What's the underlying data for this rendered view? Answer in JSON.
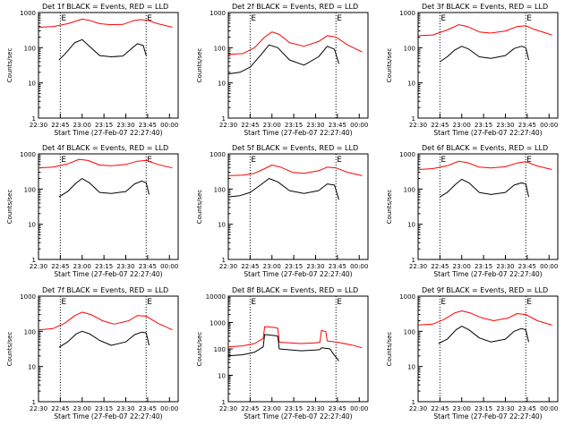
{
  "figure": {
    "ylabel": "Counts/sec",
    "xlabel": "Start Time (27-Feb-07 22:27:40)",
    "xticks": [
      "22:30",
      "22:45",
      "23:00",
      "23:15",
      "23:30",
      "23:45",
      "00:00"
    ],
    "colors": {
      "events": "#000000",
      "lld": "#ff0000",
      "axes": "#000000",
      "background": "#ffffff"
    }
  },
  "chart_data": [
    {
      "type": "line",
      "title": "Det 1f BLACK = Events, RED = LLD",
      "ylim": [
        1,
        1000
      ],
      "yscale": "log",
      "yticks": [
        "1",
        "10",
        "100",
        "1000"
      ],
      "markers": [
        {
          "x": "22:45",
          "label": "E"
        },
        {
          "x": "23:44",
          "label": "E"
        }
      ],
      "series": [
        {
          "name": "Events",
          "color": "#000000",
          "x": [
            "22:44",
            "22:48",
            "22:55",
            "23:00",
            "23:05",
            "23:12",
            "23:20",
            "23:28",
            "23:34",
            "23:38",
            "23:42",
            "23:44"
          ],
          "values": [
            45,
            65,
            140,
            170,
            110,
            60,
            55,
            58,
            95,
            130,
            115,
            60
          ]
        },
        {
          "name": "LLD",
          "color": "#ff0000",
          "x": [
            "22:30",
            "22:40",
            "22:50",
            "23:00",
            "23:05",
            "23:12",
            "23:20",
            "23:28",
            "23:35",
            "23:40",
            "23:45",
            "23:52",
            "00:02"
          ],
          "values": [
            380,
            400,
            480,
            650,
            600,
            480,
            450,
            460,
            580,
            630,
            600,
            480,
            380
          ]
        }
      ]
    },
    {
      "type": "line",
      "title": "Det 2f BLACK = Events, RED = LLD",
      "ylim": [
        1,
        1000
      ],
      "yscale": "log",
      "yticks": [
        "1",
        "10",
        "100",
        "1000"
      ],
      "markers": [
        {
          "x": "22:45",
          "label": "E"
        },
        {
          "x": "23:44",
          "label": "E"
        }
      ],
      "series": [
        {
          "name": "Events",
          "color": "#000000",
          "x": [
            "22:30",
            "22:38",
            "22:45",
            "22:52",
            "22:58",
            "23:04",
            "23:12",
            "23:22",
            "23:32",
            "23:38",
            "23:43",
            "23:46"
          ],
          "values": [
            18,
            20,
            28,
            60,
            120,
            100,
            45,
            32,
            55,
            110,
            90,
            35
          ]
        },
        {
          "name": "LLD",
          "color": "#ff0000",
          "x": [
            "22:30",
            "22:40",
            "22:48",
            "22:55",
            "23:00",
            "23:05",
            "23:12",
            "23:22",
            "23:32",
            "23:38",
            "23:44",
            "23:52",
            "00:02"
          ],
          "values": [
            65,
            68,
            100,
            200,
            280,
            240,
            140,
            110,
            150,
            220,
            200,
            120,
            75
          ]
        }
      ]
    },
    {
      "type": "line",
      "title": "Det 3f BLACK = Events, RED = LLD",
      "ylim": [
        1,
        1000
      ],
      "yscale": "log",
      "yticks": [
        "1",
        "10",
        "100",
        "1000"
      ],
      "markers": [
        {
          "x": "22:45",
          "label": "E"
        },
        {
          "x": "23:44",
          "label": "E"
        }
      ],
      "series": [
        {
          "name": "Events",
          "color": "#000000",
          "x": [
            "22:45",
            "22:50",
            "22:55",
            "23:00",
            "23:05",
            "23:12",
            "23:20",
            "23:30",
            "23:36",
            "23:41",
            "23:44",
            "23:46"
          ],
          "values": [
            40,
            55,
            85,
            110,
            90,
            55,
            50,
            60,
            95,
            110,
            100,
            45
          ]
        },
        {
          "name": "LLD",
          "color": "#ff0000",
          "x": [
            "22:30",
            "22:40",
            "22:50",
            "22:58",
            "23:04",
            "23:12",
            "23:20",
            "23:30",
            "23:38",
            "23:44",
            "23:50",
            "00:02"
          ],
          "values": [
            220,
            230,
            320,
            450,
            400,
            280,
            260,
            300,
            400,
            420,
            330,
            230
          ]
        }
      ]
    },
    {
      "type": "line",
      "title": "Det 4f BLACK = Events, RED = LLD",
      "ylim": [
        1,
        1000
      ],
      "yscale": "log",
      "yticks": [
        "1",
        "10",
        "100",
        "1000"
      ],
      "markers": [
        {
          "x": "22:45",
          "label": "E"
        },
        {
          "x": "23:44",
          "label": "E"
        }
      ],
      "series": [
        {
          "name": "Events",
          "color": "#000000",
          "x": [
            "22:44",
            "22:50",
            "22:56",
            "23:00",
            "23:05",
            "23:12",
            "23:20",
            "23:30",
            "23:36",
            "23:41",
            "23:44",
            "23:46"
          ],
          "values": [
            60,
            85,
            150,
            200,
            150,
            80,
            75,
            85,
            140,
            170,
            150,
            70
          ]
        },
        {
          "name": "LLD",
          "color": "#ff0000",
          "x": [
            "22:30",
            "22:40",
            "22:50",
            "22:58",
            "23:04",
            "23:12",
            "23:20",
            "23:30",
            "23:38",
            "23:44",
            "23:52",
            "00:02"
          ],
          "values": [
            400,
            420,
            520,
            700,
            650,
            480,
            460,
            500,
            620,
            650,
            500,
            400
          ]
        }
      ]
    },
    {
      "type": "line",
      "title": "Det 5f BLACK = Events, RED = LLD",
      "ylim": [
        1,
        1000
      ],
      "yscale": "log",
      "yticks": [
        "1",
        "10",
        "100",
        "1000"
      ],
      "markers": [
        {
          "x": "22:45",
          "label": "E"
        },
        {
          "x": "23:44",
          "label": "E"
        }
      ],
      "series": [
        {
          "name": "Events",
          "color": "#000000",
          "x": [
            "22:30",
            "22:38",
            "22:45",
            "22:52",
            "22:58",
            "23:04",
            "23:12",
            "23:22",
            "23:32",
            "23:38",
            "23:43",
            "23:46"
          ],
          "values": [
            60,
            65,
            80,
            130,
            200,
            160,
            90,
            75,
            90,
            140,
            130,
            50
          ]
        },
        {
          "name": "LLD",
          "color": "#ff0000",
          "x": [
            "22:30",
            "22:40",
            "22:48",
            "22:55",
            "23:00",
            "23:06",
            "23:14",
            "23:22",
            "23:32",
            "23:38",
            "23:44",
            "23:52",
            "00:02"
          ],
          "values": [
            240,
            250,
            280,
            380,
            480,
            420,
            300,
            280,
            330,
            420,
            400,
            300,
            240
          ]
        }
      ]
    },
    {
      "type": "line",
      "title": "Det 6f BLACK = Events, RED = LLD",
      "ylim": [
        1,
        1000
      ],
      "yscale": "log",
      "yticks": [
        "1",
        "10",
        "100",
        "1000"
      ],
      "markers": [
        {
          "x": "22:45",
          "label": "E"
        },
        {
          "x": "23:44",
          "label": "E"
        }
      ],
      "series": [
        {
          "name": "Events",
          "color": "#000000",
          "x": [
            "22:45",
            "22:50",
            "22:56",
            "23:00",
            "23:05",
            "23:12",
            "23:20",
            "23:30",
            "23:36",
            "23:41",
            "23:44",
            "23:46"
          ],
          "values": [
            60,
            80,
            140,
            190,
            150,
            80,
            70,
            80,
            130,
            150,
            140,
            60
          ]
        },
        {
          "name": "LLD",
          "color": "#ff0000",
          "x": [
            "22:30",
            "22:40",
            "22:50",
            "22:58",
            "23:04",
            "23:12",
            "23:20",
            "23:30",
            "23:38",
            "23:44",
            "23:52",
            "00:02"
          ],
          "values": [
            360,
            380,
            460,
            620,
            560,
            420,
            400,
            430,
            550,
            600,
            450,
            360
          ]
        }
      ]
    },
    {
      "type": "line",
      "title": "Det 7f BLACK = Events, RED = LLD",
      "ylim": [
        1,
        1000
      ],
      "yscale": "log",
      "yticks": [
        "1",
        "10",
        "100",
        "1000"
      ],
      "markers": [
        {
          "x": "22:45",
          "label": "E"
        },
        {
          "x": "23:44",
          "label": "E"
        }
      ],
      "series": [
        {
          "name": "Events",
          "color": "#000000",
          "x": [
            "22:44",
            "22:50",
            "22:56",
            "23:00",
            "23:05",
            "23:12",
            "23:20",
            "23:30",
            "23:36",
            "23:41",
            "23:44",
            "23:46"
          ],
          "values": [
            35,
            50,
            85,
            100,
            85,
            55,
            40,
            50,
            80,
            95,
            90,
            40
          ]
        },
        {
          "name": "LLD",
          "color": "#ff0000",
          "x": [
            "22:30",
            "22:40",
            "22:48",
            "22:55",
            "23:00",
            "23:06",
            "23:14",
            "23:22",
            "23:32",
            "23:38",
            "23:44",
            "23:52",
            "00:02"
          ],
          "values": [
            110,
            120,
            170,
            280,
            350,
            300,
            200,
            160,
            200,
            280,
            270,
            170,
            110
          ]
        }
      ]
    },
    {
      "type": "line",
      "title": "Det 8f BLACK = Events, RED = LLD",
      "ylim": [
        1,
        10000
      ],
      "yscale": "log",
      "yticks": [
        "1",
        "10",
        "100",
        "1000",
        "10000"
      ],
      "markers": [
        {
          "x": "22:45",
          "label": "E"
        },
        {
          "x": "23:44",
          "label": "E"
        }
      ],
      "series": [
        {
          "name": "Events",
          "color": "#000000",
          "x": [
            "22:30",
            "22:40",
            "22:48",
            "22:54",
            "22:55",
            "23:02",
            "23:04",
            "23:05",
            "23:20",
            "23:30",
            "23:33",
            "23:34",
            "23:40",
            "23:41",
            "23:46"
          ],
          "values": [
            55,
            60,
            75,
            120,
            350,
            320,
            300,
            100,
            85,
            90,
            95,
            110,
            100,
            80,
            35
          ]
        },
        {
          "name": "LLD",
          "color": "#ff0000",
          "x": [
            "22:30",
            "22:40",
            "22:48",
            "22:54",
            "22:55",
            "23:02",
            "23:04",
            "23:05",
            "23:20",
            "23:30",
            "23:33",
            "23:34",
            "23:37",
            "23:38",
            "23:45",
            "23:55",
            "00:02"
          ],
          "values": [
            120,
            130,
            160,
            250,
            700,
            650,
            600,
            180,
            160,
            170,
            180,
            500,
            450,
            200,
            180,
            140,
            110
          ]
        }
      ]
    },
    {
      "type": "line",
      "title": "Det 9f BLACK = Events, RED = LLD",
      "ylim": [
        1,
        1000
      ],
      "yscale": "log",
      "yticks": [
        "1",
        "10",
        "100",
        "1000"
      ],
      "markers": [
        {
          "x": "22:45",
          "label": "E"
        },
        {
          "x": "23:44",
          "label": "E"
        }
      ],
      "series": [
        {
          "name": "Events",
          "color": "#000000",
          "x": [
            "22:44",
            "22:50",
            "22:56",
            "23:00",
            "23:05",
            "23:12",
            "23:20",
            "23:30",
            "23:36",
            "23:41",
            "23:44",
            "23:46"
          ],
          "values": [
            45,
            60,
            110,
            140,
            110,
            65,
            50,
            60,
            100,
            120,
            110,
            50
          ]
        },
        {
          "name": "LLD",
          "color": "#ff0000",
          "x": [
            "22:30",
            "22:40",
            "22:48",
            "22:55",
            "23:00",
            "23:06",
            "23:14",
            "23:22",
            "23:32",
            "23:38",
            "23:44",
            "23:52",
            "00:02"
          ],
          "values": [
            150,
            160,
            220,
            330,
            380,
            330,
            240,
            200,
            240,
            320,
            300,
            200,
            150
          ]
        }
      ]
    }
  ]
}
